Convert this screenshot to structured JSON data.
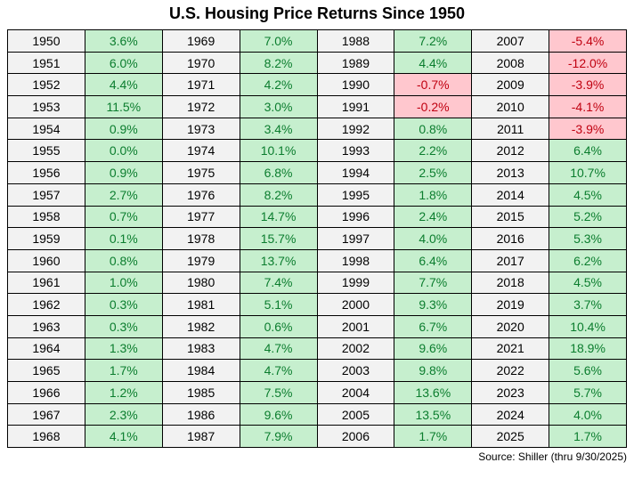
{
  "title": "U.S. Housing Price Returns Since 1950",
  "source_note": "Source: Shiller (thru 9/30/2025)",
  "colors": {
    "positive_bg": "#C6EFCE",
    "positive_text": "#0B7D2E",
    "negative_bg": "#FFC7CE",
    "negative_text": "#C00010",
    "year_bg": "#F2F2F2",
    "border": "#000000"
  },
  "chart_data": {
    "type": "table",
    "title": "U.S. Housing Price Returns Since 1950",
    "unit": "annual percent return",
    "source": "Source: Shiller (thru 9/30/2025)",
    "layout": {
      "column_pairs": 4,
      "rows_per_pair": 19,
      "pair_columns": [
        "Year",
        "Return"
      ],
      "color_rule": "positive returns green, negative returns pink/red"
    },
    "column_pairs": [
      {
        "rows": [
          {
            "year": "1950",
            "value": "3.6%"
          },
          {
            "year": "1951",
            "value": "6.0%"
          },
          {
            "year": "1952",
            "value": "4.4%"
          },
          {
            "year": "1953",
            "value": "11.5%"
          },
          {
            "year": "1954",
            "value": "0.9%"
          },
          {
            "year": "1955",
            "value": "0.0%"
          },
          {
            "year": "1956",
            "value": "0.9%"
          },
          {
            "year": "1957",
            "value": "2.7%"
          },
          {
            "year": "1958",
            "value": "0.7%"
          },
          {
            "year": "1959",
            "value": "0.1%"
          },
          {
            "year": "1960",
            "value": "0.8%"
          },
          {
            "year": "1961",
            "value": "1.0%"
          },
          {
            "year": "1962",
            "value": "0.3%"
          },
          {
            "year": "1963",
            "value": "0.3%"
          },
          {
            "year": "1964",
            "value": "1.3%"
          },
          {
            "year": "1965",
            "value": "1.7%"
          },
          {
            "year": "1966",
            "value": "1.2%"
          },
          {
            "year": "1967",
            "value": "2.3%"
          },
          {
            "year": "1968",
            "value": "4.1%"
          }
        ]
      },
      {
        "rows": [
          {
            "year": "1969",
            "value": "7.0%"
          },
          {
            "year": "1970",
            "value": "8.2%"
          },
          {
            "year": "1971",
            "value": "4.2%"
          },
          {
            "year": "1972",
            "value": "3.0%"
          },
          {
            "year": "1973",
            "value": "3.4%"
          },
          {
            "year": "1974",
            "value": "10.1%"
          },
          {
            "year": "1975",
            "value": "6.8%"
          },
          {
            "year": "1976",
            "value": "8.2%"
          },
          {
            "year": "1977",
            "value": "14.7%"
          },
          {
            "year": "1978",
            "value": "15.7%"
          },
          {
            "year": "1979",
            "value": "13.7%"
          },
          {
            "year": "1980",
            "value": "7.4%"
          },
          {
            "year": "1981",
            "value": "5.1%"
          },
          {
            "year": "1982",
            "value": "0.6%"
          },
          {
            "year": "1983",
            "value": "4.7%"
          },
          {
            "year": "1984",
            "value": "4.7%"
          },
          {
            "year": "1985",
            "value": "7.5%"
          },
          {
            "year": "1986",
            "value": "9.6%"
          },
          {
            "year": "1987",
            "value": "7.9%"
          }
        ]
      },
      {
        "rows": [
          {
            "year": "1988",
            "value": "7.2%"
          },
          {
            "year": "1989",
            "value": "4.4%"
          },
          {
            "year": "1990",
            "value": "-0.7%"
          },
          {
            "year": "1991",
            "value": "-0.2%"
          },
          {
            "year": "1992",
            "value": "0.8%"
          },
          {
            "year": "1993",
            "value": "2.2%"
          },
          {
            "year": "1994",
            "value": "2.5%"
          },
          {
            "year": "1995",
            "value": "1.8%"
          },
          {
            "year": "1996",
            "value": "2.4%"
          },
          {
            "year": "1997",
            "value": "4.0%"
          },
          {
            "year": "1998",
            "value": "6.4%"
          },
          {
            "year": "1999",
            "value": "7.7%"
          },
          {
            "year": "2000",
            "value": "9.3%"
          },
          {
            "year": "2001",
            "value": "6.7%"
          },
          {
            "year": "2002",
            "value": "9.6%"
          },
          {
            "year": "2003",
            "value": "9.8%"
          },
          {
            "year": "2004",
            "value": "13.6%"
          },
          {
            "year": "2005",
            "value": "13.5%"
          },
          {
            "year": "2006",
            "value": "1.7%"
          }
        ]
      },
      {
        "rows": [
          {
            "year": "2007",
            "value": "-5.4%"
          },
          {
            "year": "2008",
            "value": "-12.0%"
          },
          {
            "year": "2009",
            "value": "-3.9%"
          },
          {
            "year": "2010",
            "value": "-4.1%"
          },
          {
            "year": "2011",
            "value": "-3.9%"
          },
          {
            "year": "2012",
            "value": "6.4%"
          },
          {
            "year": "2013",
            "value": "10.7%"
          },
          {
            "year": "2014",
            "value": "4.5%"
          },
          {
            "year": "2015",
            "value": "5.2%"
          },
          {
            "year": "2016",
            "value": "5.3%"
          },
          {
            "year": "2017",
            "value": "6.2%"
          },
          {
            "year": "2018",
            "value": "4.5%"
          },
          {
            "year": "2019",
            "value": "3.7%"
          },
          {
            "year": "2020",
            "value": "10.4%"
          },
          {
            "year": "2021",
            "value": "18.9%"
          },
          {
            "year": "2022",
            "value": "5.6%"
          },
          {
            "year": "2023",
            "value": "5.7%"
          },
          {
            "year": "2024",
            "value": "4.0%"
          },
          {
            "year": "2025",
            "value": "1.7%"
          }
        ]
      }
    ]
  }
}
